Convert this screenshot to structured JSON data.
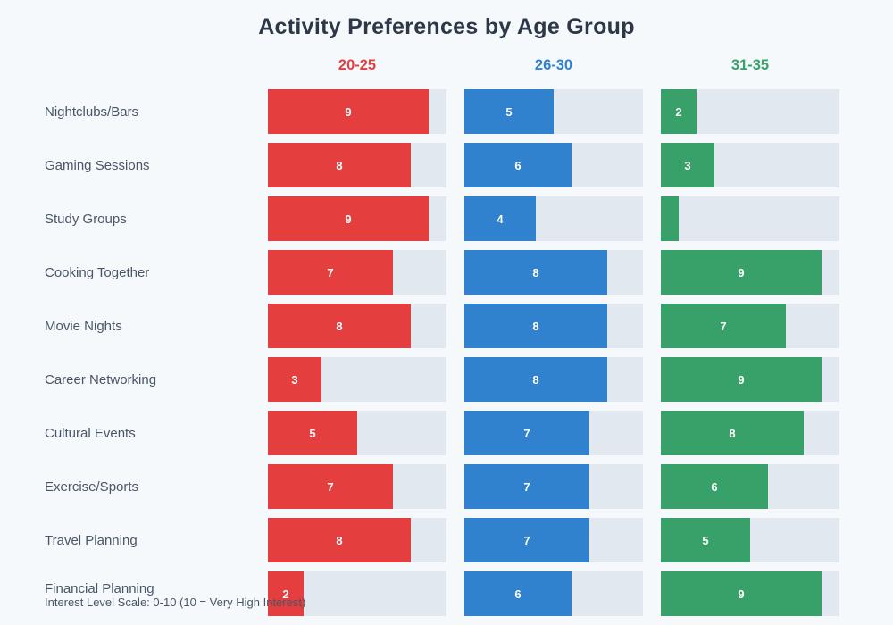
{
  "page": {
    "background": "#f5f9fc",
    "title": "Activity Preferences by Age Group",
    "caption": "Interest Level Scale: 0-10 (10 = Very High Interest)"
  },
  "chart_data": {
    "type": "bar",
    "orientation": "horizontal",
    "title": "Activity Preferences by Age Group",
    "scale_note": "Interest Level Scale: 0-10 (10 = Very High Interest)",
    "xlim": [
      0,
      10
    ],
    "grid": false,
    "legend_position": "column-headers-top",
    "value_labels": "inside-bars-white",
    "categories": [
      "Nightclubs/Bars",
      "Gaming Sessions",
      "Study Groups",
      "Cooking Together",
      "Movie Nights",
      "Career Networking",
      "Cultural Events",
      "Exercise/Sports",
      "Travel Planning",
      "Financial Planning"
    ],
    "series": [
      {
        "name": "20-25",
        "color": "#e53e3e",
        "values": [
          9,
          8,
          9,
          7,
          8,
          3,
          5,
          7,
          8,
          2
        ]
      },
      {
        "name": "26-30",
        "color": "#3182ce",
        "values": [
          5,
          6,
          4,
          8,
          8,
          8,
          7,
          7,
          7,
          6
        ]
      },
      {
        "name": "31-35",
        "color": "#38a169",
        "values": [
          2,
          3,
          1,
          9,
          7,
          9,
          8,
          6,
          5,
          9
        ]
      }
    ],
    "track_color": "#e2e8f0",
    "label_color": "#4a5568",
    "title_color": "#2d3748"
  }
}
